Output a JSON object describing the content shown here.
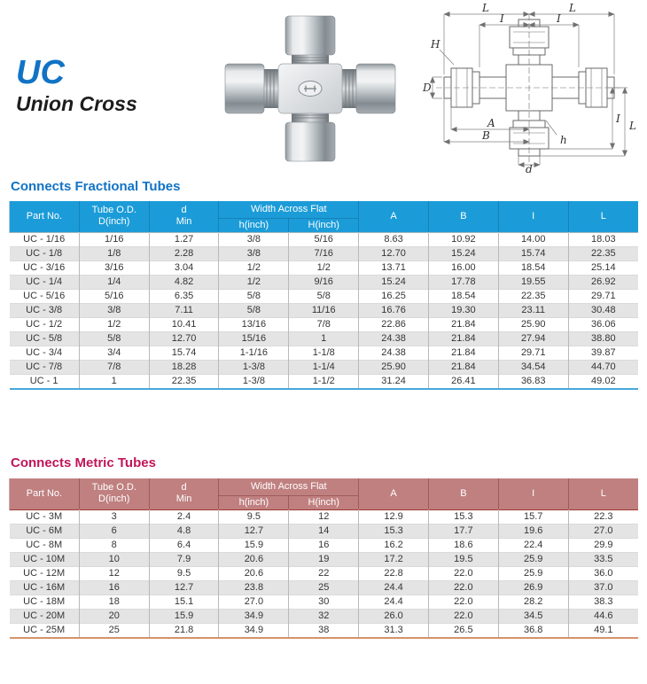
{
  "header": {
    "code": "UC",
    "name": "Union Cross"
  },
  "colors": {
    "fractional_title": "#1173c5",
    "fractional_header_bg": "#1b9cd8",
    "fractional_rule": "#46a8db",
    "metric_title": "#c1155a",
    "metric_header_bg": "#c08080",
    "metric_rule": "#d6916e",
    "alt_row": "#e4e4e4"
  },
  "table_headers": {
    "part": "Part No.",
    "tube_line1": "Tube O.D.",
    "tube_line2": "D(inch)",
    "d_line1": "d",
    "d_line2": "Min",
    "width_across_flat": "Width Across Flat",
    "h_sub": "h(inch)",
    "H_sub": "H(inch)",
    "col_a": "A",
    "col_b": "B",
    "col_i": "I",
    "col_l": "L"
  },
  "fractional": {
    "title": "Connects Fractional Tubes",
    "rows": [
      [
        "UC - 1/16",
        "1/16",
        "1.27",
        "3/8",
        "5/16",
        "8.63",
        "10.92",
        "14.00",
        "18.03"
      ],
      [
        "UC - 1/8",
        "1/8",
        "2.28",
        "3/8",
        "7/16",
        "12.70",
        "15.24",
        "15.74",
        "22.35"
      ],
      [
        "UC - 3/16",
        "3/16",
        "3.04",
        "1/2",
        "1/2",
        "13.71",
        "16.00",
        "18.54",
        "25.14"
      ],
      [
        "UC - 1/4",
        "1/4",
        "4.82",
        "1/2",
        "9/16",
        "15.24",
        "17.78",
        "19.55",
        "26.92"
      ],
      [
        "UC - 5/16",
        "5/16",
        "6.35",
        "5/8",
        "5/8",
        "16.25",
        "18.54",
        "22.35",
        "29.71"
      ],
      [
        "UC - 3/8",
        "3/8",
        "7.11",
        "5/8",
        "11/16",
        "16.76",
        "19.30",
        "23.11",
        "30.48"
      ],
      [
        "UC - 1/2",
        "1/2",
        "10.41",
        "13/16",
        "7/8",
        "22.86",
        "21.84",
        "25.90",
        "36.06"
      ],
      [
        "UC - 5/8",
        "5/8",
        "12.70",
        "15/16",
        "1",
        "24.38",
        "21.84",
        "27.94",
        "38.80"
      ],
      [
        "UC - 3/4",
        "3/4",
        "15.74",
        "1-1/16",
        "1-1/8",
        "24.38",
        "21.84",
        "29.71",
        "39.87"
      ],
      [
        "UC - 7/8",
        "7/8",
        "18.28",
        "1-3/8",
        "1-1/4",
        "25.90",
        "21.84",
        "34.54",
        "44.70"
      ],
      [
        "UC - 1",
        "1",
        "22.35",
        "1-3/8",
        "1-1/2",
        "31.24",
        "26.41",
        "36.83",
        "49.02"
      ]
    ]
  },
  "metric": {
    "title": "Connects Metric Tubes",
    "rows": [
      [
        "UC - 3M",
        "3",
        "2.4",
        "9.5",
        "12",
        "12.9",
        "15.3",
        "15.7",
        "22.3"
      ],
      [
        "UC - 6M",
        "6",
        "4.8",
        "12.7",
        "14",
        "15.3",
        "17.7",
        "19.6",
        "27.0"
      ],
      [
        "UC - 8M",
        "8",
        "6.4",
        "15.9",
        "16",
        "16.2",
        "18.6",
        "22.4",
        "29.9"
      ],
      [
        "UC - 10M",
        "10",
        "7.9",
        "20.6",
        "19",
        "17.2",
        "19.5",
        "25.9",
        "33.5"
      ],
      [
        "UC - 12M",
        "12",
        "9.5",
        "20.6",
        "22",
        "22.8",
        "22.0",
        "25.9",
        "36.0"
      ],
      [
        "UC - 16M",
        "16",
        "12.7",
        "23.8",
        "25",
        "24.4",
        "22.0",
        "26.9",
        "37.0"
      ],
      [
        "UC - 18M",
        "18",
        "15.1",
        "27.0",
        "30",
        "24.4",
        "22.0",
        "28.2",
        "38.3"
      ],
      [
        "UC - 20M",
        "20",
        "15.9",
        "34.9",
        "32",
        "26.0",
        "22.0",
        "34.5",
        "44.6"
      ],
      [
        "UC - 25M",
        "25",
        "21.8",
        "34.9",
        "38",
        "31.3",
        "26.5",
        "36.8",
        "49.1"
      ]
    ]
  },
  "diagram": {
    "labels": {
      "top_left_L": "L",
      "top_right_L": "L",
      "top_left_I": "I",
      "top_right_I": "I",
      "H": "H",
      "D": "D",
      "A": "A",
      "B": "B",
      "h": "h",
      "right_I": "I",
      "right_L": "L",
      "d": "d"
    }
  }
}
